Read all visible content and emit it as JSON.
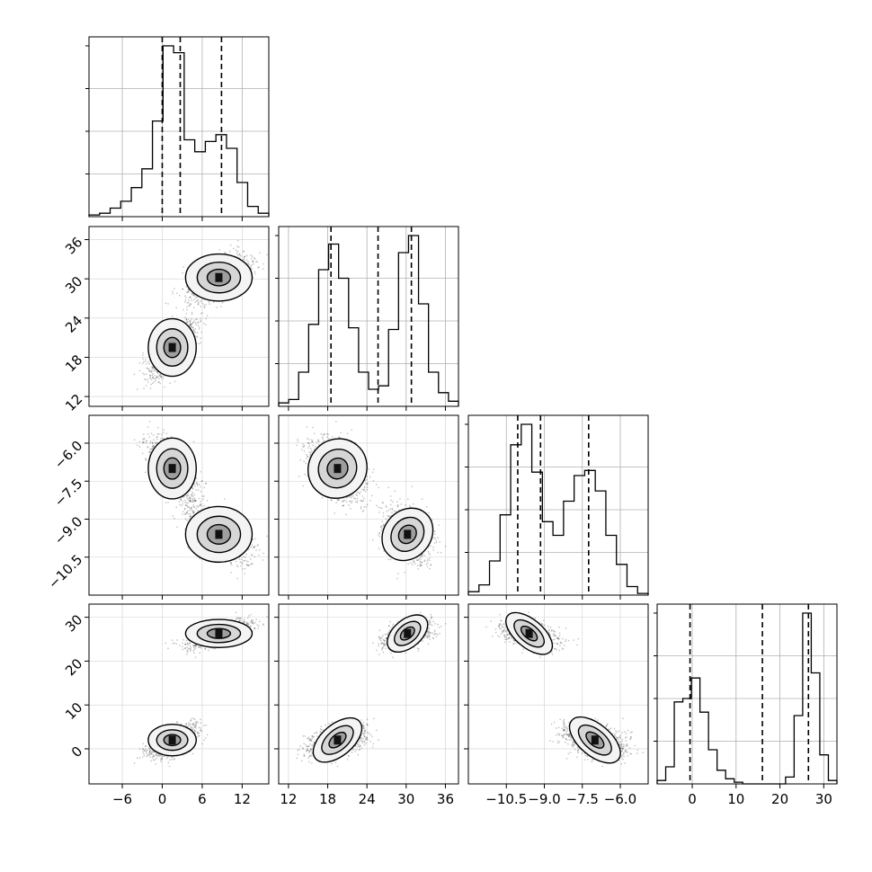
{
  "chart_data": {
    "type": "corner",
    "title": "",
    "grid": true,
    "n_params": 4,
    "params": [
      {
        "range": [
          -11,
          16
        ],
        "ticks": [
          -6,
          0,
          6,
          12
        ],
        "tick_labels": [
          "−6",
          "0",
          "6",
          "12"
        ],
        "quantiles": [
          0.0,
          2.7,
          8.9
        ]
      },
      {
        "range": [
          10.5,
          38.0
        ],
        "ticks": [
          12,
          18,
          24,
          30,
          36
        ],
        "tick_labels": [
          "12",
          "18",
          "24",
          "30",
          "36"
        ],
        "quantiles": [
          18.5,
          25.7,
          30.8
        ]
      },
      {
        "range": [
          -12.0,
          -4.9
        ],
        "ticks": [
          -10.5,
          -9.0,
          -7.5,
          -6.0
        ],
        "tick_labels": [
          "−10.5",
          "−9.0",
          "−7.5",
          "−6.0"
        ],
        "quantiles": [
          -10.05,
          -9.15,
          -7.25
        ]
      },
      {
        "range": [
          -8,
          33
        ],
        "ticks": [
          0,
          10,
          20,
          30
        ],
        "tick_labels": [
          "0",
          "10",
          "20",
          "30"
        ],
        "quantiles": [
          -0.5,
          16.0,
          26.5
        ]
      }
    ],
    "histograms": [
      {
        "counts": [
          1,
          2,
          5,
          9,
          17,
          28,
          56,
          100,
          96,
          45,
          38,
          44,
          48,
          40,
          20,
          6,
          2
        ]
      },
      {
        "counts": [
          2,
          4,
          20,
          48,
          80,
          95,
          75,
          46,
          20,
          10,
          12,
          45,
          90,
          100,
          60,
          20,
          8,
          3
        ]
      },
      {
        "counts": [
          2,
          6,
          20,
          47,
          88,
          100,
          72,
          43,
          35,
          55,
          70,
          73,
          61,
          35,
          18,
          5,
          1
        ]
      },
      {
        "counts": [
          2,
          10,
          48,
          50,
          62,
          42,
          20,
          8,
          3,
          1,
          0,
          0,
          0,
          0,
          0,
          4,
          40,
          100,
          65,
          17,
          2
        ]
      }
    ],
    "clusters": [
      {
        "means": [
          1.5,
          19.5,
          -7.0,
          2.0
        ],
        "sd": [
          1.8,
          2.2,
          0.6,
          1.8
        ],
        "weight": 0.55
      },
      {
        "means": [
          8.5,
          30.2,
          -9.6,
          26.3
        ],
        "sd": [
          2.5,
          1.8,
          0.55,
          1.6
        ],
        "weight": 0.45
      }
    ],
    "contour_levels": [
      0.12,
      0.35,
      0.65
    ]
  }
}
